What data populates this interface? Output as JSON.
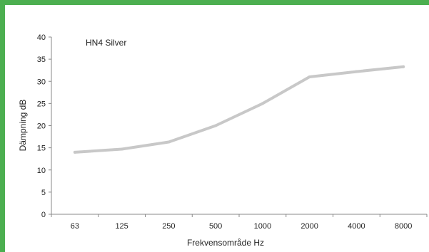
{
  "chart_data": {
    "type": "line",
    "categories": [
      "63",
      "125",
      "250",
      "500",
      "1000",
      "2000",
      "4000",
      "8000"
    ],
    "series": [
      {
        "values": [
          14,
          14.7,
          16.3,
          20,
          25,
          31,
          32.2,
          33.3
        ],
        "color": "#c8c8c8"
      }
    ],
    "annotation": "HN4 Silver",
    "xlabel": "Frekvensområde Hz",
    "ylabel": "Dämpning dB",
    "ylim": [
      0,
      40
    ],
    "yticks": [
      "0",
      "5",
      "10",
      "15",
      "20",
      "25",
      "30",
      "35",
      "40"
    ],
    "grid": false,
    "legend": "none"
  },
  "colors": {
    "frame_accent": "#4caf50",
    "axis": "#888888"
  }
}
